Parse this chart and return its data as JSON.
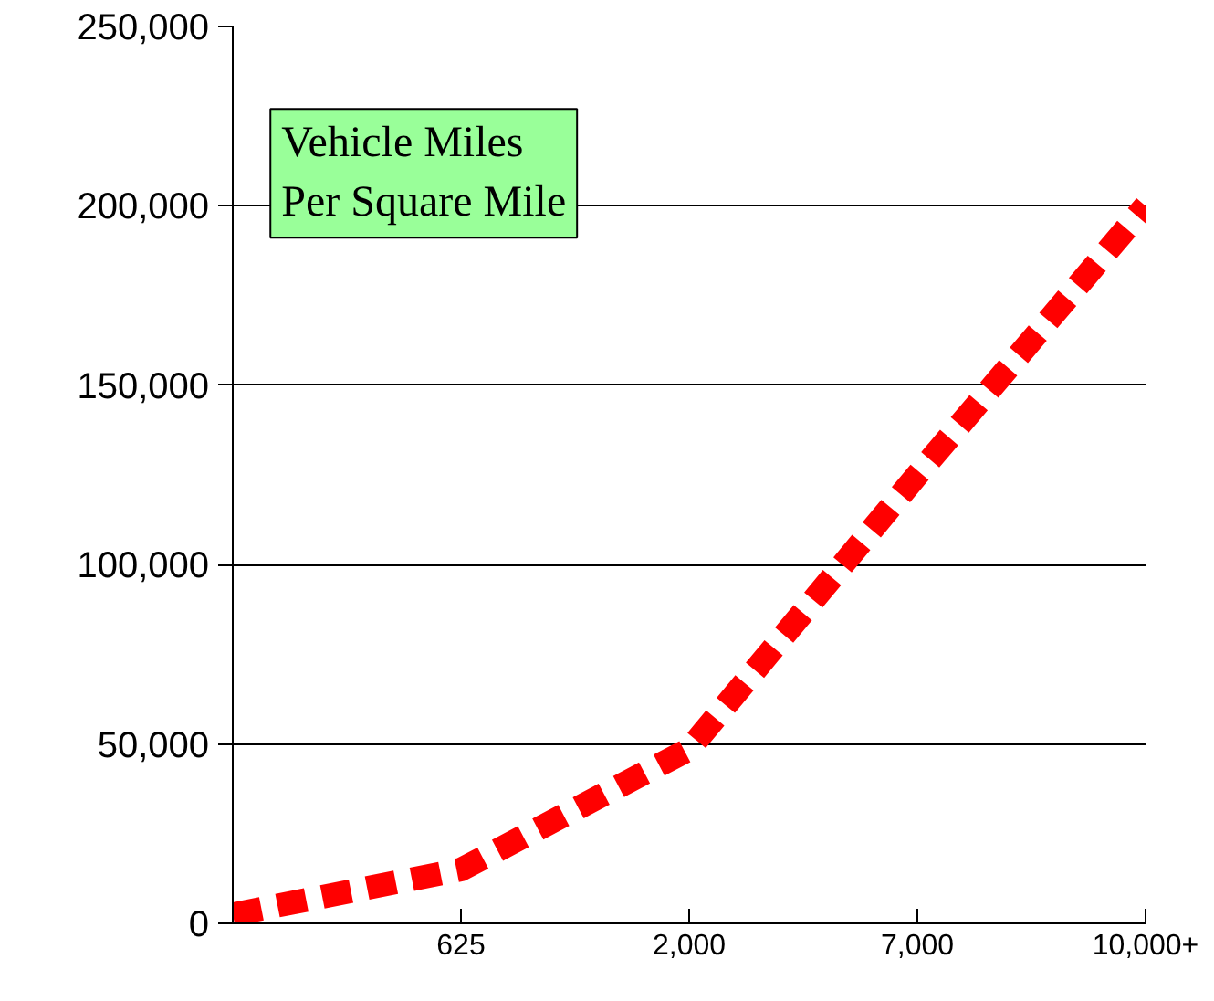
{
  "chart_data": {
    "type": "line",
    "title": "Vehicle Miles\nPer Square Mile",
    "categories": [
      null,
      "625",
      "2,000",
      "7,000",
      "10,000+"
    ],
    "series": [
      {
        "color": "#ff0000",
        "values": [
          2500,
          15000,
          48500,
          125000,
          200000
        ]
      }
    ],
    "ylim": [
      0,
      250000
    ],
    "yticks": [
      {
        "value": 0,
        "label": "0"
      },
      {
        "value": 50000,
        "label": "50,000"
      },
      {
        "value": 100000,
        "label": "100,000"
      },
      {
        "value": 150000,
        "label": "150,000"
      },
      {
        "value": 200000,
        "label": "200,000"
      },
      {
        "value": 250000,
        "label": "250,000"
      }
    ],
    "grid": "y",
    "line_style": "dashed",
    "marker": "none"
  }
}
